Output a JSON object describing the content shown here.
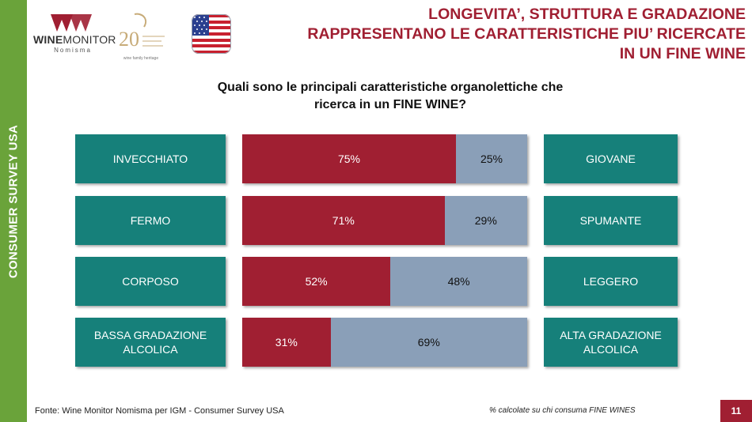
{
  "sidebar": {
    "label": "CONSUMER SURVEY USA"
  },
  "logos": {
    "winemonitor_name_bold": "WINE",
    "winemonitor_name_rest": "MONITOR",
    "winemonitor_sub": "Nomisma",
    "igm_tagline": "wine family heritage"
  },
  "header": {
    "title_lines": [
      "LONGEVITA’, STRUTTURA E GRADAZIONE",
      "RAPPRESENTANO LE CARATTERISTICHE PIU’ RICERCATE",
      "IN UN FINE WINE"
    ]
  },
  "question_lines": [
    "Quali sono le principali caratteristiche organolettiche che",
    "ricerca in un FINE WINE?"
  ],
  "chart_data": {
    "type": "bar",
    "orientation": "horizontal",
    "stacked": true,
    "unit": "%",
    "categories": [
      {
        "left": "INVECCHIATO",
        "right": "GIOVANE"
      },
      {
        "left": "FERMO",
        "right": "SPUMANTE"
      },
      {
        "left": "CORPOSO",
        "right": "LEGGERO"
      },
      {
        "left": "BASSA GRADAZIONE ALCOLICA",
        "right": "ALTA GRADAZIONE ALCOLICA"
      }
    ],
    "series": [
      {
        "name": "left",
        "values": [
          75,
          71,
          52,
          31
        ],
        "labels": [
          "75%",
          "71%",
          "52%",
          "31%"
        ]
      },
      {
        "name": "right",
        "values": [
          25,
          29,
          48,
          69
        ],
        "labels": [
          "25%",
          "29%",
          "48%",
          "69%"
        ]
      }
    ],
    "colors": {
      "left": "#a01f32",
      "right": "#8a9fb8",
      "category_box": "#16807a"
    }
  },
  "footer": {
    "source": "Fonte: Wine Monitor Nomisma per IGM - Consumer Survey USA",
    "note": "% calcolate su chi consuma FINE WINES",
    "page": "11"
  }
}
